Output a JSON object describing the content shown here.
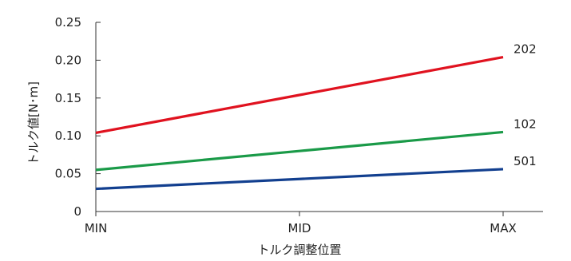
{
  "chart_data": {
    "type": "line",
    "title": "",
    "xlabel": "トルク調整位置",
    "ylabel": "トルク値[N･m]",
    "categories": [
      "MIN",
      "MID",
      "MAX"
    ],
    "ylim": [
      0,
      0.25
    ],
    "yticks": [
      {
        "value": 0,
        "label": "0"
      },
      {
        "value": 0.05,
        "label": "0.05"
      },
      {
        "value": 0.1,
        "label": "0.10"
      },
      {
        "value": 0.15,
        "label": "0.15"
      },
      {
        "value": 0.2,
        "label": "0.20"
      },
      {
        "value": 0.25,
        "label": "0.25"
      }
    ],
    "grid": false,
    "legend": "none",
    "series": [
      {
        "name": "202",
        "color": "#e0121f",
        "values": [
          0.104,
          0.154,
          0.204
        ]
      },
      {
        "name": "102",
        "color": "#1a9a48",
        "values": [
          0.055,
          0.08,
          0.105
        ]
      },
      {
        "name": "501",
        "color": "#123f8f",
        "values": [
          0.03,
          0.043,
          0.056
        ]
      }
    ]
  }
}
